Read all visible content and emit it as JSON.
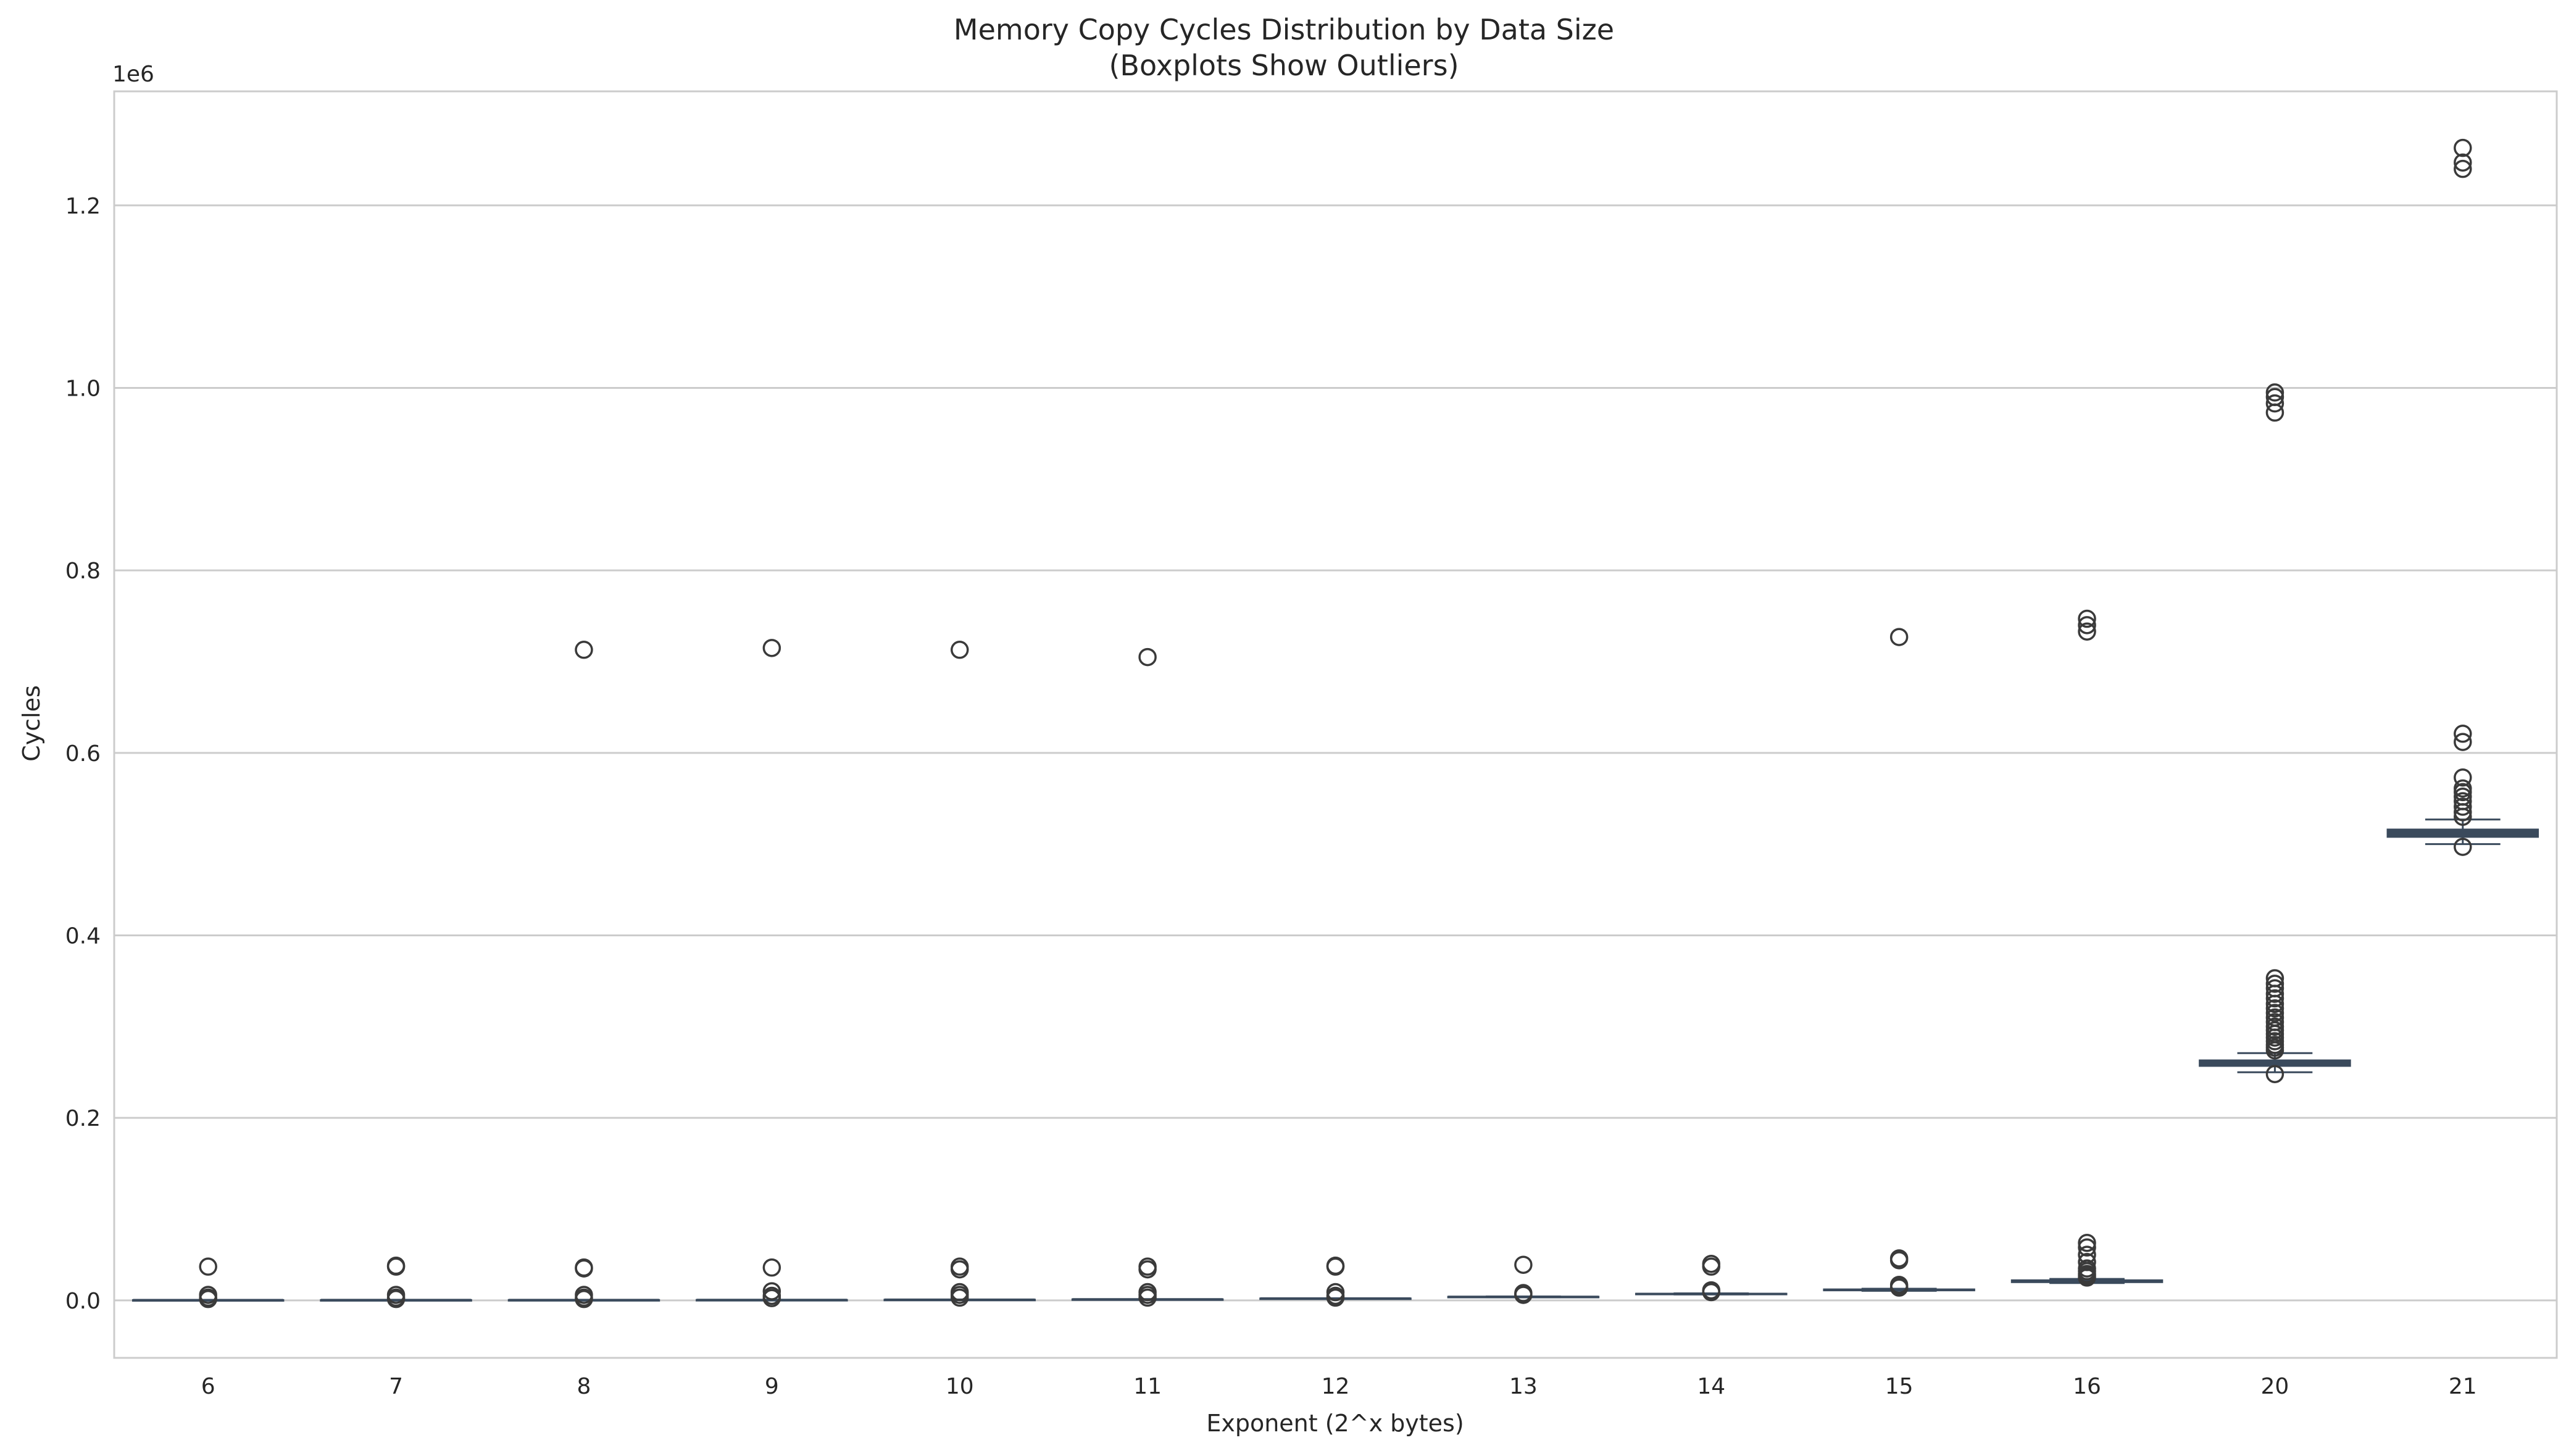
{
  "chart_data": {
    "type": "boxplot",
    "title": "Memory Copy Cycles Distribution by Data Size",
    "subtitle": "(Boxplots Show Outliers)",
    "xlabel": "Exponent (2^x bytes)",
    "ylabel": "Cycles",
    "y_offset_label": "1e6",
    "ylim": [
      -63000,
      1325000
    ],
    "yticks": [
      0.0,
      0.2,
      0.4,
      0.6,
      0.8,
      1.0,
      1.2
    ],
    "ytick_labels": [
      "0.0",
      "0.2",
      "0.4",
      "0.6",
      "0.8",
      "1.0",
      "1.2"
    ],
    "y_scale": 1000000,
    "grid": true,
    "box_color": "#3a4a5c",
    "categories": [
      "6",
      "7",
      "8",
      "9",
      "10",
      "11",
      "12",
      "13",
      "14",
      "15",
      "16",
      "20",
      "21"
    ],
    "boxes": [
      {
        "category": "6",
        "whisker_low": 150,
        "q1": 200,
        "median": 250,
        "q3": 300,
        "whisker_high": 400,
        "outliers": [
          37000,
          6000,
          3000,
          1500
        ]
      },
      {
        "category": "7",
        "whisker_low": 200,
        "q1": 250,
        "median": 300,
        "q3": 350,
        "whisker_high": 450,
        "outliers": [
          38000,
          37000,
          6000,
          3000,
          1500
        ]
      },
      {
        "category": "8",
        "whisker_low": 250,
        "q1": 300,
        "median": 350,
        "q3": 400,
        "whisker_high": 500,
        "outliers": [
          713000,
          36000,
          35000,
          6000,
          3000,
          1500
        ]
      },
      {
        "category": "9",
        "whisker_low": 350,
        "q1": 400,
        "median": 450,
        "q3": 500,
        "whisker_high": 600,
        "outliers": [
          715000,
          36000,
          10000,
          5000,
          2500
        ]
      },
      {
        "category": "10",
        "whisker_low": 600,
        "q1": 650,
        "median": 700,
        "q3": 750,
        "whisker_high": 900,
        "outliers": [
          713000,
          37000,
          34000,
          9000,
          6000,
          3000
        ]
      },
      {
        "category": "11",
        "whisker_low": 1000,
        "q1": 1050,
        "median": 1100,
        "q3": 1150,
        "whisker_high": 1300,
        "outliers": [
          705000,
          37000,
          34000,
          9000,
          6000,
          3000
        ]
      },
      {
        "category": "12",
        "whisker_low": 1800,
        "q1": 1900,
        "median": 2000,
        "q3": 2100,
        "whisker_high": 2300,
        "outliers": [
          38000,
          37000,
          9000,
          5000,
          3000
        ]
      },
      {
        "category": "13",
        "whisker_low": 3400,
        "q1": 3600,
        "median": 3800,
        "q3": 4000,
        "whisker_high": 4300,
        "outliers": [
          39000,
          8000,
          7000,
          6000
        ]
      },
      {
        "category": "14",
        "whisker_low": 6500,
        "q1": 6800,
        "median": 7000,
        "q3": 7300,
        "whisker_high": 7700,
        "outliers": [
          40000,
          37000,
          11000,
          9000
        ]
      },
      {
        "category": "15",
        "whisker_low": 10500,
        "q1": 11000,
        "median": 11500,
        "q3": 12000,
        "whisker_high": 12800,
        "outliers": [
          727000,
          46000,
          44000,
          17000,
          15000,
          14000
        ]
      },
      {
        "category": "16",
        "whisker_low": 19000,
        "q1": 20000,
        "median": 21000,
        "q3": 22000,
        "whisker_high": 23500,
        "outliers": [
          747000,
          740000,
          733000,
          63000,
          58000,
          50000,
          42000,
          35000,
          32000,
          29000,
          27000,
          25000
        ]
      },
      {
        "category": "20",
        "whisker_low": 250000,
        "q1": 257000,
        "median": 260000,
        "q3": 263000,
        "whisker_high": 271000,
        "outliers": [
          995000,
          990000,
          983000,
          973000,
          353000,
          347000,
          342000,
          336000,
          331000,
          325000,
          320000,
          315000,
          310000,
          305000,
          300000,
          296000,
          292000,
          288000,
          284000,
          280000,
          277000,
          274000,
          248000
        ]
      },
      {
        "category": "21",
        "whisker_low": 500000,
        "q1": 508000,
        "median": 512000,
        "q3": 516000,
        "whisker_high": 527000,
        "outliers": [
          1263000,
          1247000,
          1240000,
          621000,
          612000,
          573000,
          561000,
          557000,
          552000,
          547000,
          541000,
          535000,
          530000,
          497000
        ]
      }
    ]
  }
}
